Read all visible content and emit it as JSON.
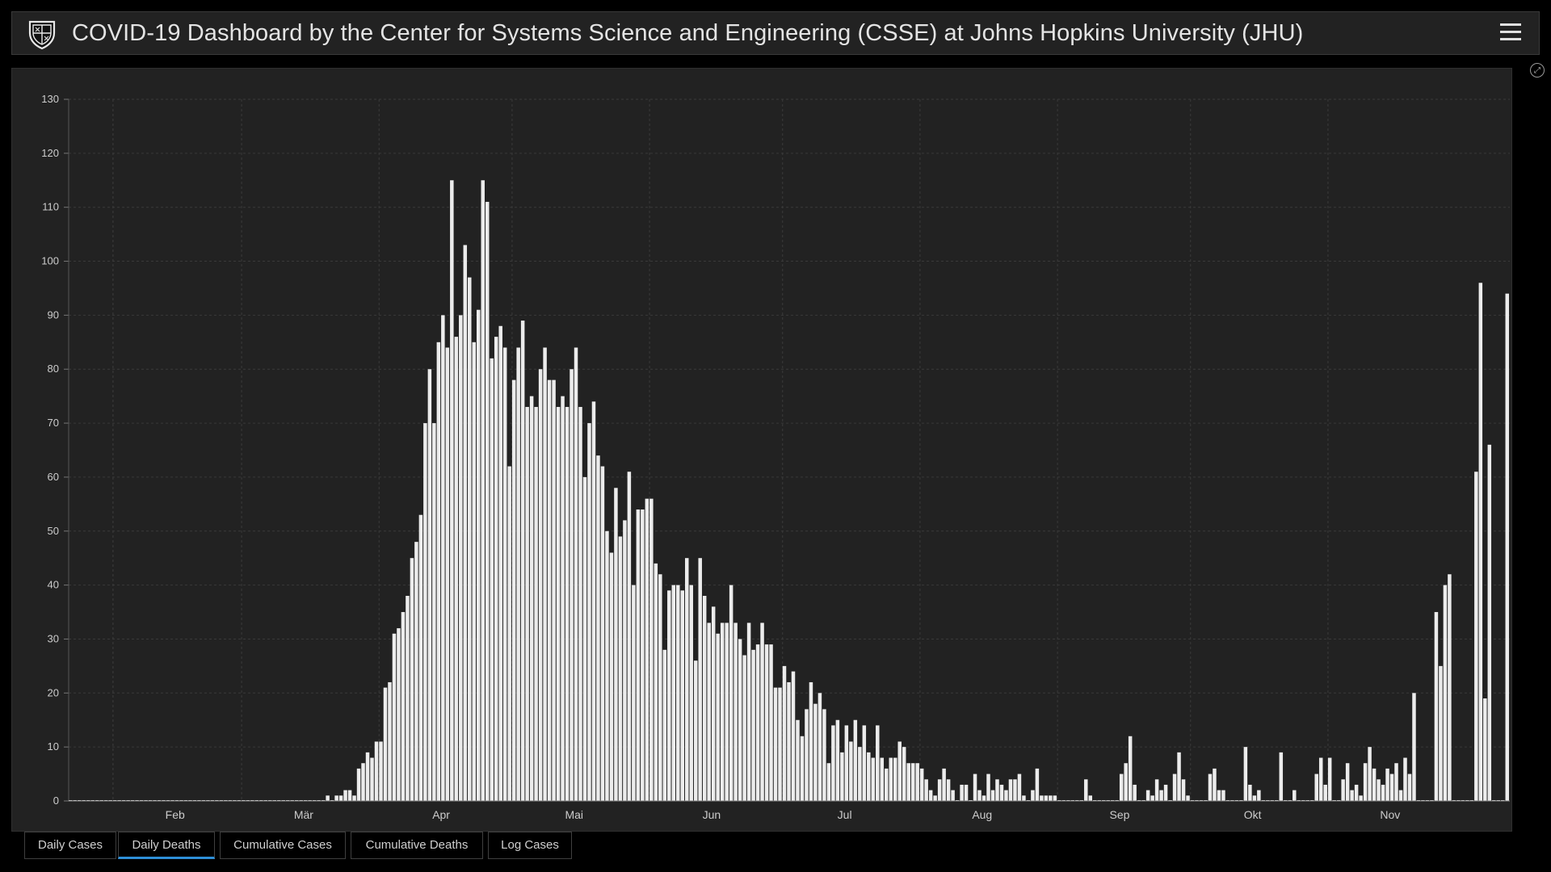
{
  "header": {
    "title": "COVID-19 Dashboard by the Center for Systems Science and Engineering (CSSE) at Johns Hopkins University (JHU)"
  },
  "colors": {
    "background": "#000000",
    "panel": "#222222",
    "bar": "#ececec",
    "grid": "#3a3a3a",
    "axis_text": "#cccccc",
    "tab_active_accent": "#2e8fd8"
  },
  "icons": {
    "logo": "jhu-shield-icon",
    "menu": "hamburger-menu-icon",
    "expand": "expand-icon"
  },
  "tabs": [
    {
      "label": "Daily Cases",
      "active": false
    },
    {
      "label": "Daily Deaths",
      "active": true
    },
    {
      "label": "Cumulative Cases",
      "active": false
    },
    {
      "label": "Cumulative Deaths",
      "active": false
    },
    {
      "label": "Log Cases",
      "active": false
    }
  ],
  "chart_data": {
    "type": "bar",
    "title": "",
    "xlabel": "",
    "ylabel": "",
    "ylim": [
      0,
      130
    ],
    "yticks": [
      0,
      10,
      20,
      30,
      40,
      50,
      60,
      70,
      80,
      90,
      100,
      110,
      120,
      130
    ],
    "xtick_labels": [
      "Feb",
      "Mär",
      "Apr",
      "Mai",
      "Jun",
      "Jul",
      "Aug",
      "Sep",
      "Okt",
      "Nov"
    ],
    "grid": true,
    "x_start": "2020-01-22",
    "values": [
      0,
      0,
      0,
      0,
      0,
      0,
      0,
      0,
      0,
      0,
      0,
      0,
      0,
      0,
      0,
      0,
      0,
      0,
      0,
      0,
      0,
      0,
      0,
      0,
      0,
      0,
      0,
      0,
      0,
      0,
      0,
      0,
      0,
      0,
      0,
      0,
      0,
      0,
      0,
      0,
      0,
      0,
      0,
      0,
      0,
      0,
      0,
      0,
      0,
      0,
      0,
      0,
      0,
      0,
      0,
      0,
      0,
      0,
      1,
      0,
      1,
      1,
      2,
      2,
      1,
      6,
      7,
      9,
      8,
      11,
      11,
      21,
      22,
      31,
      32,
      35,
      38,
      45,
      48,
      53,
      70,
      80,
      70,
      85,
      90,
      84,
      115,
      86,
      90,
      103,
      97,
      85,
      91,
      115,
      111,
      82,
      86,
      88,
      84,
      62,
      78,
      84,
      89,
      73,
      75,
      73,
      80,
      84,
      78,
      78,
      73,
      75,
      73,
      80,
      84,
      73,
      60,
      70,
      74,
      64,
      62,
      50,
      46,
      58,
      49,
      52,
      61,
      40,
      54,
      54,
      56,
      56,
      44,
      42,
      28,
      39,
      40,
      40,
      39,
      45,
      40,
      26,
      45,
      38,
      33,
      36,
      31,
      33,
      33,
      40,
      33,
      30,
      27,
      33,
      28,
      29,
      33,
      29,
      29,
      21,
      21,
      25,
      22,
      24,
      15,
      12,
      17,
      22,
      18,
      20,
      17,
      7,
      14,
      15,
      9,
      14,
      11,
      15,
      10,
      14,
      9,
      8,
      14,
      8,
      6,
      8,
      8,
      11,
      10,
      7,
      7,
      7,
      6,
      4,
      2,
      1,
      4,
      6,
      4,
      2,
      0,
      3,
      3,
      0,
      5,
      2,
      1,
      5,
      2,
      4,
      3,
      2,
      4,
      4,
      5,
      1,
      0,
      2,
      6,
      1,
      1,
      1,
      1,
      0,
      0,
      0,
      0,
      0,
      0,
      4,
      1,
      0,
      0,
      0,
      0,
      0,
      0,
      5,
      7,
      12,
      3,
      0,
      0,
      2,
      1,
      4,
      2,
      3,
      0,
      5,
      9,
      4,
      1,
      0,
      0,
      0,
      0,
      5,
      6,
      2,
      2,
      0,
      0,
      0,
      0,
      10,
      3,
      1,
      2,
      0,
      0,
      0,
      0,
      9,
      0,
      0,
      2,
      0,
      0,
      0,
      0,
      5,
      8,
      3,
      8,
      0,
      0,
      4,
      7,
      2,
      3,
      1,
      7,
      10,
      6,
      4,
      3,
      6,
      5,
      7,
      2,
      8,
      5,
      20,
      0,
      0,
      0,
      0,
      35,
      25,
      40,
      42,
      0,
      0,
      0,
      0,
      0,
      61,
      96,
      19,
      66,
      0,
      0,
      0,
      94
    ]
  }
}
